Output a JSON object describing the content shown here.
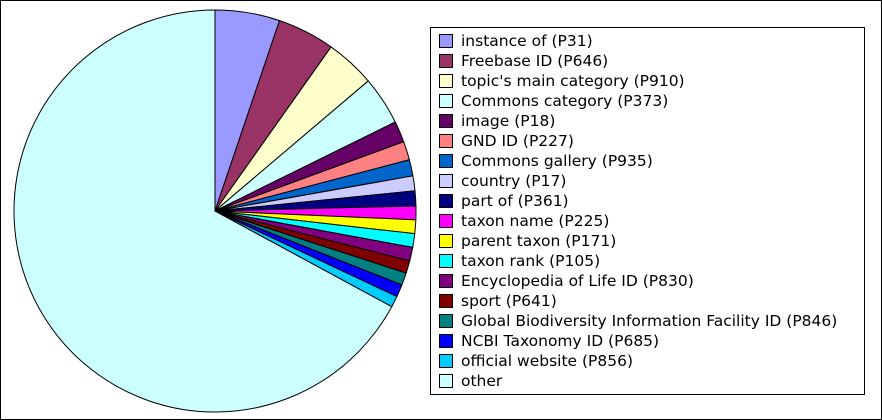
{
  "chart_data": {
    "type": "pie",
    "title": "",
    "start_angle_deg": 0,
    "direction": "clockwise",
    "legend_position": "right",
    "slices": [
      {
        "label": "instance of (P31)",
        "value": 5.2,
        "color": "#9999ff"
      },
      {
        "label": "Freebase ID (P646)",
        "value": 4.6,
        "color": "#993366"
      },
      {
        "label": "topic's main category (P910)",
        "value": 4.0,
        "color": "#ffffcc"
      },
      {
        "label": "Commons category (P373)",
        "value": 3.9,
        "color": "#ccffff"
      },
      {
        "label": "image (P18)",
        "value": 1.7,
        "color": "#660066"
      },
      {
        "label": "GND ID (P227)",
        "value": 1.5,
        "color": "#ff8080"
      },
      {
        "label": "Commons gallery (P935)",
        "value": 1.3,
        "color": "#0066cc"
      },
      {
        "label": "country (P17)",
        "value": 1.2,
        "color": "#ccccff"
      },
      {
        "label": "part of (P361)",
        "value": 1.2,
        "color": "#000080"
      },
      {
        "label": "taxon name (P225)",
        "value": 1.1,
        "color": "#ff00ff"
      },
      {
        "label": "parent taxon (P171)",
        "value": 1.1,
        "color": "#ffff00"
      },
      {
        "label": "taxon rank (P105)",
        "value": 1.1,
        "color": "#00ffff"
      },
      {
        "label": "Encyclopedia of Life ID (P830)",
        "value": 1.1,
        "color": "#800080"
      },
      {
        "label": "sport (P641)",
        "value": 1.0,
        "color": "#800000"
      },
      {
        "label": "Global Biodiversity Information Facility ID (P846)",
        "value": 1.0,
        "color": "#008080"
      },
      {
        "label": "NCBI Taxonomy ID (P685)",
        "value": 1.0,
        "color": "#0000ff"
      },
      {
        "label": "official website (P856)",
        "value": 0.9,
        "color": "#00ccff"
      },
      {
        "label": "other",
        "value": 67.1,
        "color": "#ccffff"
      }
    ]
  }
}
